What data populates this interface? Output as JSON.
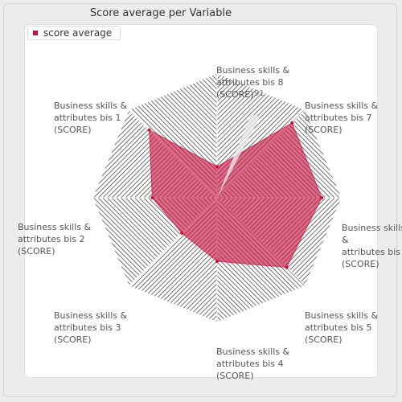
{
  "chart_data": {
    "type": "radar",
    "title": "Score average per Variable",
    "legend": {
      "entries": [
        "score average"
      ],
      "placement": "top-left"
    },
    "series": [
      {
        "name": "score average",
        "color": "#c8103f",
        "values": [
          77,
          52,
          40,
          51,
          79,
          85,
          25
        ]
      }
    ],
    "categories": [
      "Business skills &\nattributes bis 1\n(SCORE)",
      "Business skills &\nattributes bis 2\n(SCORE)",
      "Business skills &\nattributes bis 3\n(SCORE)",
      "Business skills &\nattributes bis 4\n(SCORE)",
      "Business skills &\nattributes bis 5\n(SCORE)",
      "Business skills &\nattributes bis 7\n(SCORE)",
      "Business skills &\nattributes bis 8\n(SCORE)"
    ],
    "extra_axis": {
      "label": "Business skills\n&\nattributes bis\n(SCORE)"
    },
    "value_label": "91",
    "max": 100,
    "grid": "hatched"
  }
}
